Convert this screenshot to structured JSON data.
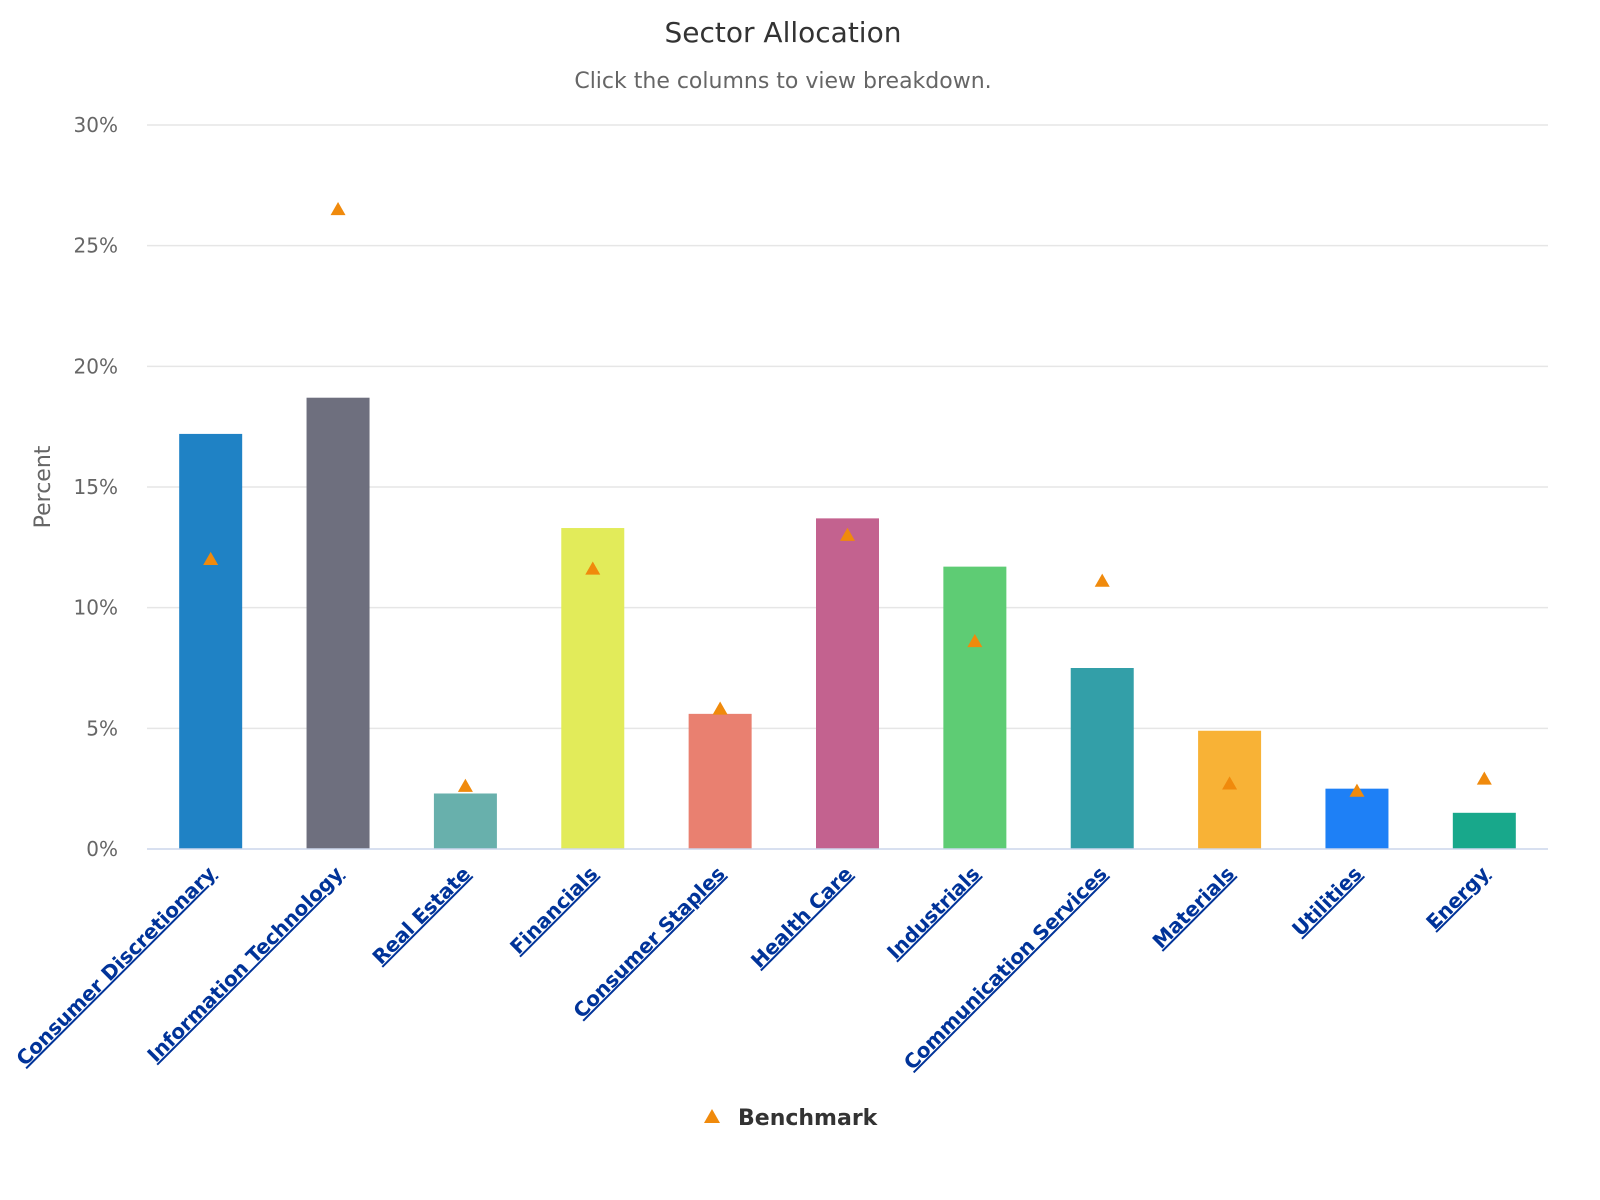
{
  "chart_data": {
    "type": "bar",
    "title": "Sector Allocation",
    "subtitle": "Click the columns to view breakdown.",
    "ylabel": "Percent",
    "ylim": [
      0,
      30
    ],
    "yticks": [
      0,
      5,
      10,
      15,
      20,
      25,
      30
    ],
    "ytick_labels": [
      "0%",
      "5%",
      "10%",
      "15%",
      "20%",
      "25%",
      "30%"
    ],
    "grid": true,
    "categories": [
      "Consumer Discretionary",
      "Information Technology",
      "Real Estate",
      "Financials",
      "Consumer Staples",
      "Health Care",
      "Industrials",
      "Communication Services",
      "Materials",
      "Utilities",
      "Energy"
    ],
    "values": [
      17.2,
      18.7,
      2.3,
      13.3,
      5.6,
      13.7,
      11.7,
      7.5,
      4.9,
      2.5,
      1.5
    ],
    "bar_colors": [
      "#1f82c5",
      "#6e6f7e",
      "#68b0ac",
      "#e2eb5a",
      "#e98070",
      "#c3628f",
      "#5ecc74",
      "#339fa8",
      "#f8b236",
      "#1e80f6",
      "#18a88b"
    ],
    "benchmark": {
      "name": "Benchmark",
      "values": [
        12.0,
        26.5,
        2.6,
        11.6,
        5.8,
        13.0,
        8.6,
        11.1,
        2.7,
        2.4,
        2.9
      ],
      "color": "#f08a0c",
      "marker": "triangle"
    },
    "legend": {
      "position": "bottom-center"
    }
  }
}
